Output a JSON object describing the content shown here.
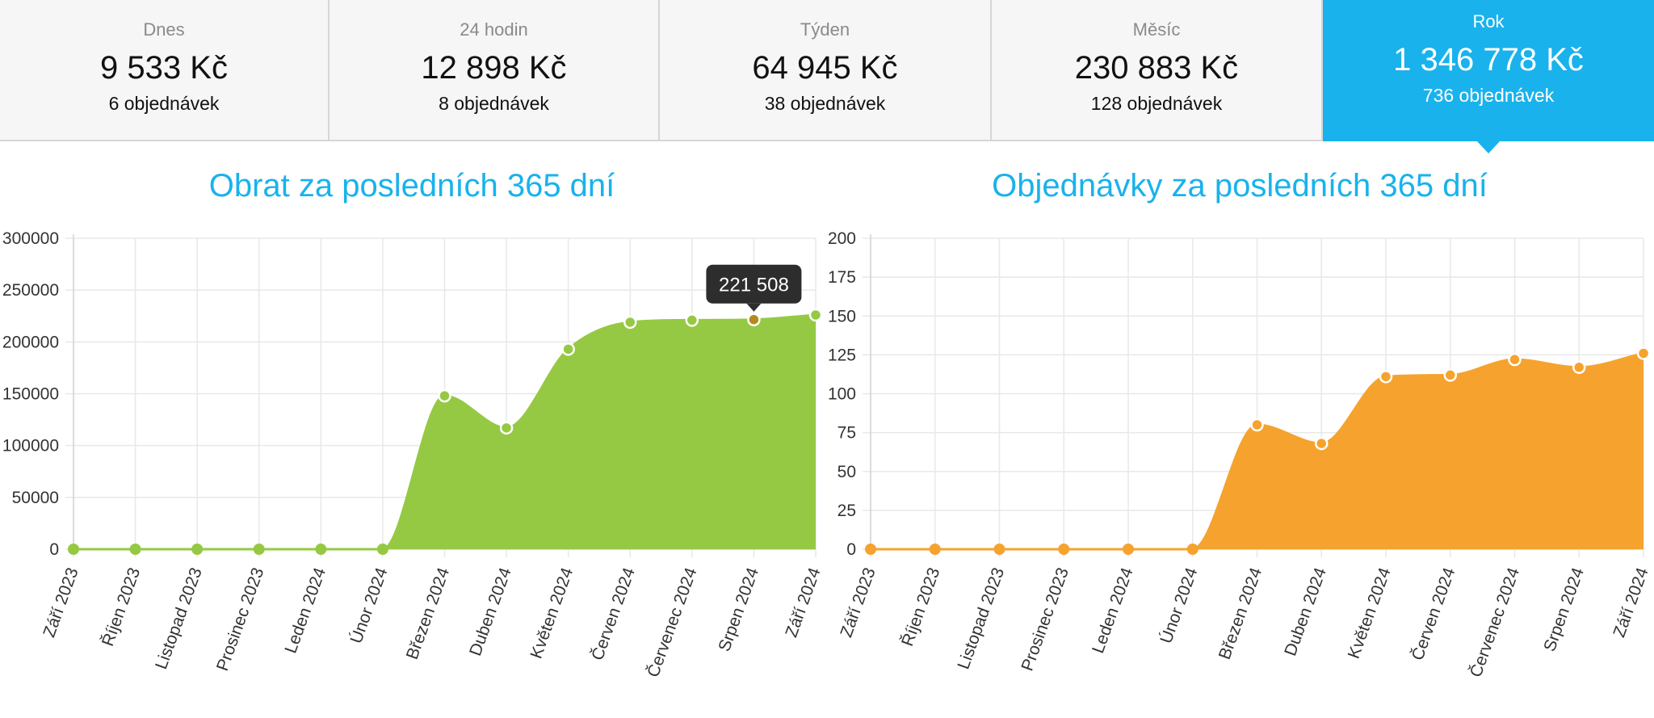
{
  "stats": [
    {
      "label": "Dnes",
      "amount": "9 533 Kč",
      "orders": "6 objednávek"
    },
    {
      "label": "24 hodin",
      "amount": "12 898 Kč",
      "orders": "8 objednávek"
    },
    {
      "label": "Týden",
      "amount": "64 945 Kč",
      "orders": "38 objednávek"
    },
    {
      "label": "Měsíc",
      "amount": "230 883 Kč",
      "orders": "128 objednávek"
    },
    {
      "label": "Rok",
      "amount": "1 346 778 Kč",
      "orders": "736 objednávek",
      "active": true
    }
  ],
  "colors": {
    "accent": "#19b2ec",
    "revenue": "#95c943",
    "orders": "#f5a32e"
  },
  "chart_data": [
    {
      "type": "area",
      "title": "Obrat za posledních 365 dní",
      "categories": [
        "Září 2023",
        "Říjen 2023",
        "Listopad 2023",
        "Prosinec 2023",
        "Leden 2024",
        "Únor 2024",
        "Březen 2024",
        "Duben 2024",
        "Květen 2024",
        "Červen 2024",
        "Červenec 2024",
        "Srpen 2024",
        "Září 2024"
      ],
      "values": [
        0,
        0,
        0,
        0,
        0,
        0,
        148000,
        117000,
        193000,
        219000,
        221000,
        221508,
        226000
      ],
      "ylim": [
        0,
        300000
      ],
      "yticks": [
        "0",
        "50000",
        "100000",
        "150000",
        "200000",
        "250000",
        "300000"
      ],
      "grid": true,
      "tooltip": {
        "index": 11,
        "text": "221 508"
      }
    },
    {
      "type": "area",
      "title": "Objednávky za posledních 365 dní",
      "categories": [
        "Září 2023",
        "Říjen 2023",
        "Listopad 2023",
        "Prosinec 2023",
        "Leden 2024",
        "Únor 2024",
        "Březen 2024",
        "Duben 2024",
        "Květen 2024",
        "Červen 2024",
        "Červenec 2024",
        "Srpen 2024",
        "Září 2024"
      ],
      "values": [
        0,
        0,
        0,
        0,
        0,
        0,
        80,
        68,
        111,
        112,
        122,
        117,
        126
      ],
      "ylim": [
        0,
        200
      ],
      "yticks": [
        "0",
        "25",
        "50",
        "75",
        "100",
        "125",
        "150",
        "175",
        "200"
      ],
      "grid": true
    }
  ]
}
